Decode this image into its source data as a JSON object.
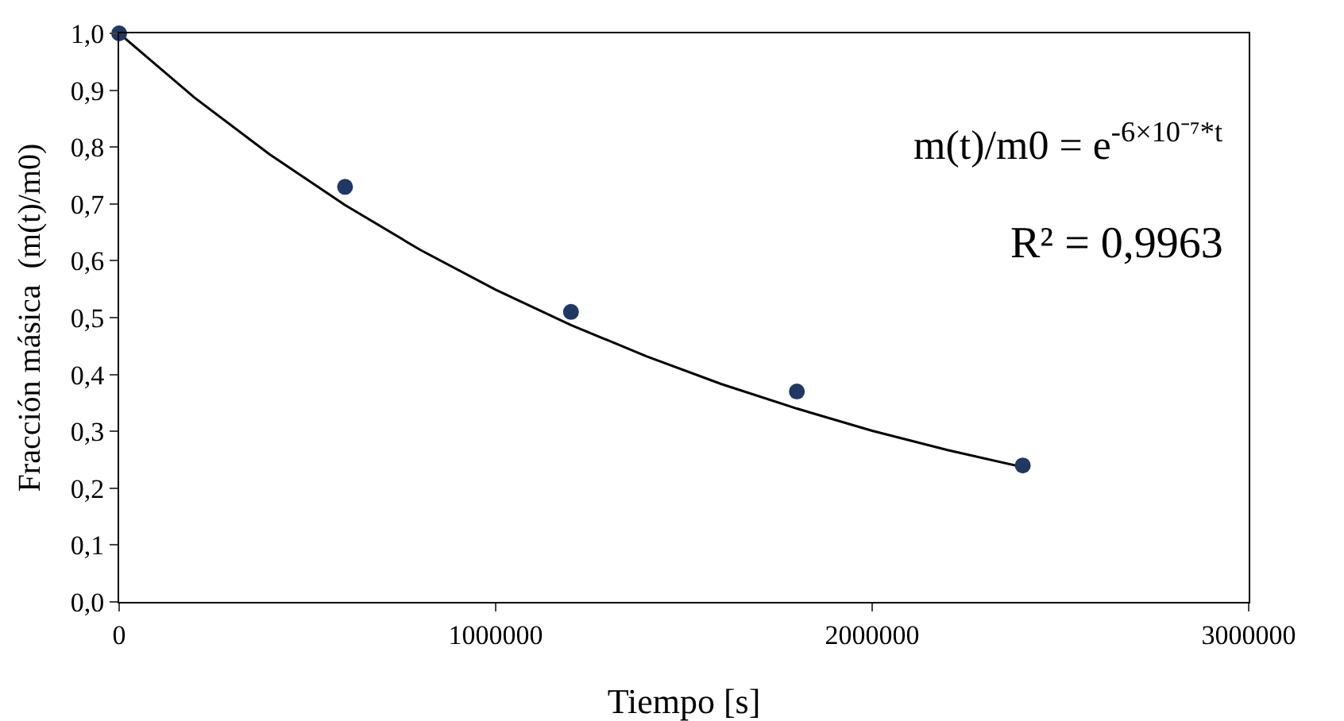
{
  "chart_data": {
    "type": "scatter",
    "xlabel": "Tiempo [s]",
    "ylabel": "Fracción másica  (m(t)/m0)",
    "xlim": [
      0,
      3000000
    ],
    "xticks": [
      0,
      1000000,
      2000000,
      3000000
    ],
    "ylim": [
      0,
      1
    ],
    "yticks": [
      {
        "value": 0,
        "label": "0,0"
      },
      {
        "value": 0.1,
        "label": "0,1"
      },
      {
        "value": 0.2,
        "label": "0,2"
      },
      {
        "value": 0.3,
        "label": "0,3"
      },
      {
        "value": 0.4,
        "label": "0,4"
      },
      {
        "value": 0.5,
        "label": "0,5"
      },
      {
        "value": 0.6,
        "label": "0,6"
      },
      {
        "value": 0.7,
        "label": "0,7"
      },
      {
        "value": 0.8,
        "label": "0,8"
      },
      {
        "value": 0.9,
        "label": "0,9"
      },
      {
        "value": 1,
        "label": "1,0"
      }
    ],
    "grid": false,
    "marker": "circle",
    "series": [
      {
        "type": "line",
        "marker": "none",
        "color": "#000000",
        "x": [
          0,
          200000,
          400000,
          600000,
          800000,
          1000000,
          1200000,
          1400000,
          1600000,
          1800000,
          2000000,
          2200000,
          2400000
        ],
        "values": [
          1,
          0.887,
          0.787,
          0.698,
          0.619,
          0.549,
          0.487,
          0.432,
          0.383,
          0.34,
          0.301,
          0.267,
          0.237
        ]
      },
      {
        "color": "#1f3864",
        "x": [
          0,
          600000,
          1200000,
          1800000,
          2400000
        ],
        "values": [
          1,
          0.73,
          0.51,
          0.37,
          0.24
        ]
      }
    ],
    "annotations": [
      "m(t)/m0 = e$^{-6×10⁻⁷*t}$",
      "R² = 0,9963"
    ]
  }
}
